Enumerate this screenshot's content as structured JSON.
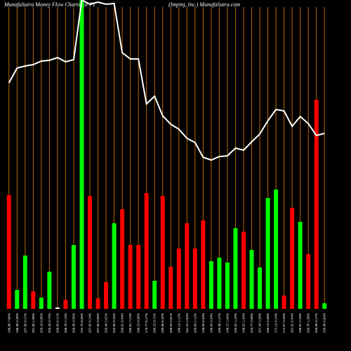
{
  "chart_data": {
    "type": "bar",
    "title": "MunafaSutra  Money Flow Charts for PI",
    "subtitle": "(Impinj, Inc.) MunafaSutra.com",
    "categories": [
      "196.96 7.68%",
      "196.36 0.48%",
      "197.30 0.27%",
      "201.95 1.68%",
      "203.10 0.95%",
      "203.40 0.74%",
      "208.00 0.21%",
      "208.79 2.13%",
      "209.45 0.30%",
      "191.75 8.35%",
      "207.50 3.24%",
      "207.60 0.05%",
      "203.40 2.02%",
      "203.90 0.25%",
      "203.01 0.44%",
      "188.51 7.14%",
      "189.23 0.38%",
      "173.77 8.17%",
      "180.23 3.72%",
      "169.06 6.20%",
      "168.03 0.61%",
      "166.14 1.12%",
      "161.41 2.83%",
      "158.00 2.12%",
      "148.00 6.33%",
      "148.50 0.34%",
      "150.38 1.27%",
      "148.27 1.40%",
      "150.02 1.18%",
      "148.02 1.33%",
      "153.77 3.88%",
      "157.44 2.39%",
      "165.13 4.88%",
      "172.13 4.24%",
      "172.57 0.26%",
      "162.32 5.94%",
      "166.02 2.29%",
      "163.75 1.36%",
      "158.56 3.17%",
      "159.56 0.63%"
    ],
    "values": [
      162,
      27,
      76,
      25,
      16,
      53,
      2,
      13,
      91,
      440,
      161,
      15,
      38,
      122,
      142,
      91,
      91,
      165,
      40,
      161,
      60,
      86,
      122,
      86,
      126,
      68,
      73,
      66,
      115,
      110,
      84,
      59,
      158,
      170,
      19,
      144,
      124,
      78,
      298,
      8
    ],
    "colors": [
      "#ff0000",
      "#00ff00",
      "#00ff00",
      "#ff0000",
      "#00ff00",
      "#00ff00",
      "#ffffff",
      "#ff0000",
      "#00ff00",
      "#00ff00",
      "#ff0000",
      "#ff0000",
      "#ff0000",
      "#00ff00",
      "#ff0000",
      "#ff0000",
      "#ff0000",
      "#ff0000",
      "#00ff00",
      "#ff0000",
      "#ff0000",
      "#ff0000",
      "#ff0000",
      "#ff0000",
      "#ff0000",
      "#00ff00",
      "#00ff00",
      "#00ff00",
      "#00ff00",
      "#ff0000",
      "#00ff00",
      "#00ff00",
      "#00ff00",
      "#00ff00",
      "#ff0000",
      "#ff0000",
      "#00ff00",
      "#ff0000",
      "#ff0000",
      "#00ff00"
    ],
    "line": {
      "color": "#ffffff",
      "values": [
        322,
        343,
        346,
        348,
        353,
        354,
        358,
        352,
        355,
        440,
        434,
        437,
        434,
        435,
        365,
        356,
        356,
        292,
        303,
        275,
        263,
        256,
        243,
        237,
        216,
        212,
        217,
        218,
        229,
        226,
        238,
        249,
        268,
        284,
        282,
        260,
        274,
        264,
        247,
        250
      ]
    },
    "ylim": [
      0,
      440
    ]
  }
}
